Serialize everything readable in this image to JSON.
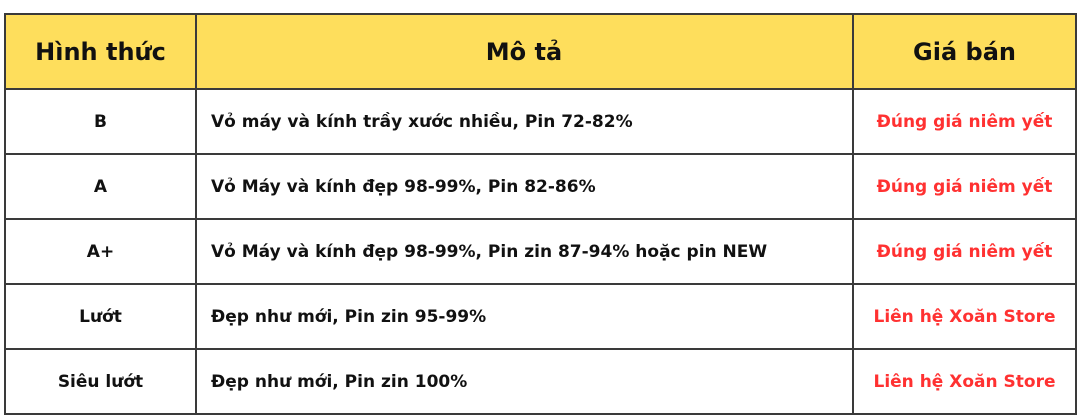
{
  "header": {
    "col1": "Hình thức",
    "col2": "Mô tả",
    "col3": "Giá bán"
  },
  "rows": [
    {
      "grade": "B",
      "description": "Vỏ máy và kính trầy xước nhiều, Pin 72-82%",
      "price": "Đúng giá niêm yết"
    },
    {
      "grade": "A",
      "description": "Vỏ Máy và kính đẹp 98-99%, Pin 82-86%",
      "price": "Đúng giá niêm yết"
    },
    {
      "grade": "A+",
      "description": "Vỏ Máy và kính đẹp 98-99%, Pin zin 87-94% hoặc pin NEW",
      "price": "Đúng giá niêm yết"
    },
    {
      "grade": "Lướt",
      "description": "Đẹp như mới, Pin zin 95-99%",
      "price": "Liên hệ Xoăn Store"
    },
    {
      "grade": "Siêu lướt",
      "description": "Đẹp như mới, Pin zin 100%",
      "price": "Liên hệ Xoăn Store"
    }
  ],
  "colors": {
    "header_bg": "#fede5c",
    "price_text": "#ff3131",
    "border": "#3a3a3a"
  }
}
